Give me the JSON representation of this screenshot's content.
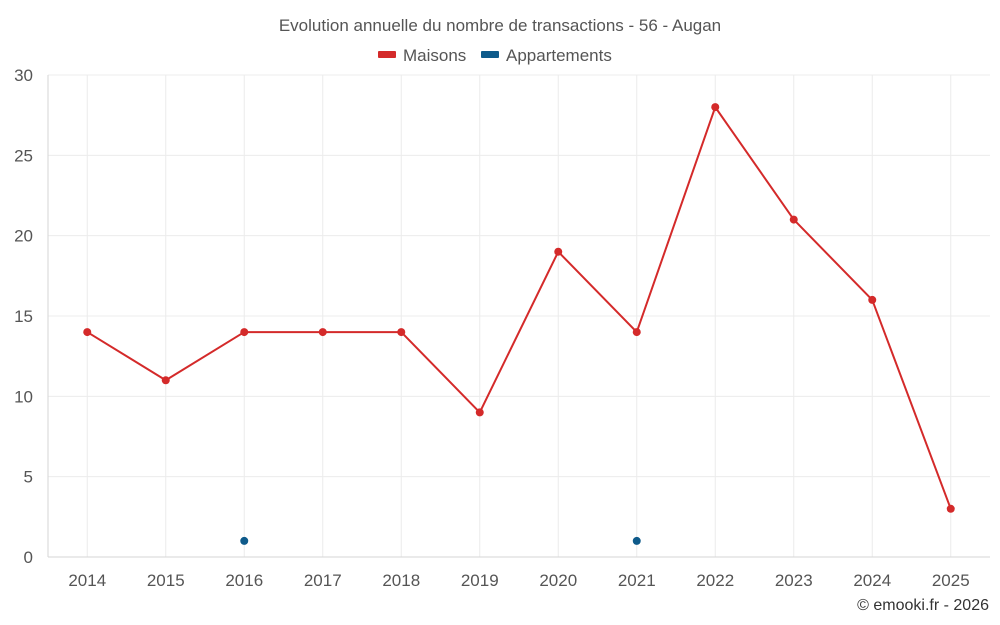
{
  "chart_data": {
    "type": "line",
    "title": "Evolution annuelle du nombre de transactions - 56 - Augan",
    "categories": [
      "2014",
      "2015",
      "2016",
      "2017",
      "2018",
      "2019",
      "2020",
      "2021",
      "2022",
      "2023",
      "2024",
      "2025"
    ],
    "series": [
      {
        "name": "Maisons",
        "color": "#d42a2a",
        "values": [
          14,
          11,
          14,
          14,
          14,
          9,
          19,
          14,
          28,
          21,
          16,
          3
        ]
      },
      {
        "name": "Appartements",
        "color": "#0e5a8a",
        "values": [
          null,
          null,
          1,
          null,
          null,
          null,
          null,
          1,
          null,
          null,
          null,
          null
        ]
      }
    ],
    "ylim": [
      0,
      30
    ],
    "yticks": [
      0,
      5,
      10,
      15,
      20,
      25,
      30
    ],
    "xlabel": "",
    "ylabel": "",
    "grid": true,
    "legend_position": "top-center",
    "credit": "© emooki.fr - 2026"
  }
}
